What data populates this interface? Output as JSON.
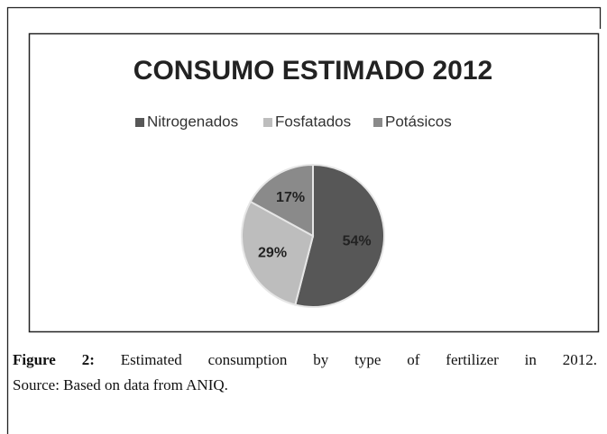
{
  "chart_data": {
    "type": "pie",
    "title": "CONSUMO ESTIMADO 2012",
    "categories": [
      "Nitrogenados",
      "Fosfatados",
      "Potásicos"
    ],
    "values": [
      54,
      29,
      17
    ],
    "value_labels": [
      "54%",
      "29%",
      "17%"
    ],
    "colors": [
      "#575757",
      "#bdbdbd",
      "#8a8a8a"
    ],
    "legend": "top"
  },
  "caption": {
    "label": "Figure 2:",
    "text": "Estimated consumption by type of fertilizer in 2012.",
    "source": "Source: Based on data from ANIQ."
  }
}
